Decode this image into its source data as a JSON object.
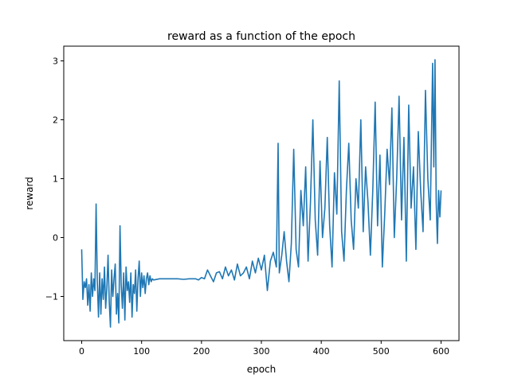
{
  "chart_data": {
    "type": "line",
    "title": "reward as a function of the epoch",
    "xlabel": "epoch",
    "ylabel": "reward",
    "xlim": [
      -30,
      630
    ],
    "ylim": [
      -1.75,
      3.25
    ],
    "xticks": [
      0,
      100,
      200,
      300,
      400,
      500,
      600
    ],
    "yticks": [
      -1,
      0,
      1,
      2,
      3
    ],
    "grid": false,
    "legend": "none",
    "line_color": "#1f77b4",
    "series": [
      {
        "x": [
          0,
          2,
          4,
          6,
          8,
          10,
          12,
          14,
          16,
          18,
          20,
          22,
          24,
          26,
          28,
          30,
          32,
          34,
          36,
          38,
          40,
          42,
          44,
          46,
          48,
          50,
          52,
          54,
          56,
          58,
          60,
          62,
          64,
          66,
          68,
          70,
          72,
          74,
          76,
          78,
          80,
          82,
          84,
          86,
          88,
          90,
          92,
          94,
          96,
          98,
          100,
          102,
          104,
          106,
          108,
          110,
          112,
          114,
          116,
          118,
          120,
          130,
          140,
          150,
          160,
          170,
          180,
          190,
          195,
          200,
          205,
          210,
          215,
          220,
          225,
          230,
          235,
          240,
          245,
          250,
          255,
          260,
          265,
          270,
          275,
          280,
          285,
          290,
          295,
          300,
          305,
          310,
          315,
          320,
          325,
          328,
          330,
          334,
          338,
          342,
          346,
          350,
          354,
          358,
          362,
          366,
          370,
          374,
          378,
          382,
          386,
          390,
          394,
          398,
          402,
          406,
          410,
          414,
          418,
          422,
          426,
          430,
          434,
          438,
          442,
          446,
          450,
          454,
          458,
          462,
          466,
          470,
          474,
          478,
          482,
          486,
          490,
          494,
          498,
          502,
          506,
          510,
          514,
          518,
          522,
          526,
          530,
          534,
          538,
          542,
          546,
          550,
          554,
          558,
          562,
          566,
          570,
          574,
          578,
          582,
          586,
          588,
          590,
          592,
          594,
          596,
          598,
          600
        ],
        "y": [
          -0.2,
          -1.05,
          -0.75,
          -0.85,
          -0.7,
          -1.15,
          -0.8,
          -1.25,
          -0.6,
          -1.0,
          -0.7,
          -0.9,
          0.57,
          -0.75,
          -1.35,
          -0.6,
          -1.3,
          -0.7,
          -1.05,
          -0.5,
          -1.2,
          -0.85,
          -0.3,
          -1.1,
          -1.52,
          -0.55,
          -1.0,
          -0.7,
          -0.45,
          -1.3,
          -0.95,
          -1.45,
          0.2,
          -0.8,
          -1.2,
          -0.6,
          -1.4,
          -0.5,
          -0.9,
          -0.75,
          -1.1,
          -0.6,
          -1.35,
          -0.8,
          -0.95,
          -0.55,
          -1.25,
          -0.7,
          -0.4,
          -1.0,
          -0.6,
          -0.85,
          -0.65,
          -0.95,
          -0.7,
          -0.6,
          -0.8,
          -0.65,
          -0.75,
          -0.7,
          -0.72,
          -0.7,
          -0.7,
          -0.7,
          -0.7,
          -0.71,
          -0.7,
          -0.7,
          -0.72,
          -0.68,
          -0.7,
          -0.55,
          -0.65,
          -0.75,
          -0.6,
          -0.58,
          -0.7,
          -0.5,
          -0.65,
          -0.55,
          -0.72,
          -0.45,
          -0.65,
          -0.6,
          -0.5,
          -0.7,
          -0.4,
          -0.6,
          -0.35,
          -0.55,
          -0.3,
          -0.9,
          -0.4,
          -0.25,
          -0.5,
          1.6,
          -0.6,
          -0.3,
          0.1,
          -0.4,
          -0.75,
          -0.1,
          1.5,
          -0.2,
          -0.5,
          0.8,
          0.2,
          1.2,
          -0.4,
          0.6,
          2.0,
          0.3,
          -0.3,
          1.3,
          0.0,
          0.5,
          1.7,
          0.2,
          -0.5,
          1.1,
          0.4,
          2.66,
          0.1,
          -0.4,
          0.8,
          1.6,
          0.3,
          -0.2,
          1.0,
          0.5,
          2.0,
          0.1,
          1.2,
          0.6,
          -0.3,
          0.8,
          2.3,
          0.2,
          1.4,
          -0.5,
          0.4,
          1.5,
          0.9,
          2.2,
          0.0,
          1.0,
          2.4,
          0.3,
          1.7,
          -0.4,
          2.25,
          0.5,
          1.2,
          -0.2,
          1.8,
          0.8,
          0.1,
          2.5,
          1.0,
          0.3,
          2.96,
          1.2,
          3.02,
          0.6,
          -0.1,
          0.8,
          0.35,
          0.8
        ]
      }
    ]
  }
}
